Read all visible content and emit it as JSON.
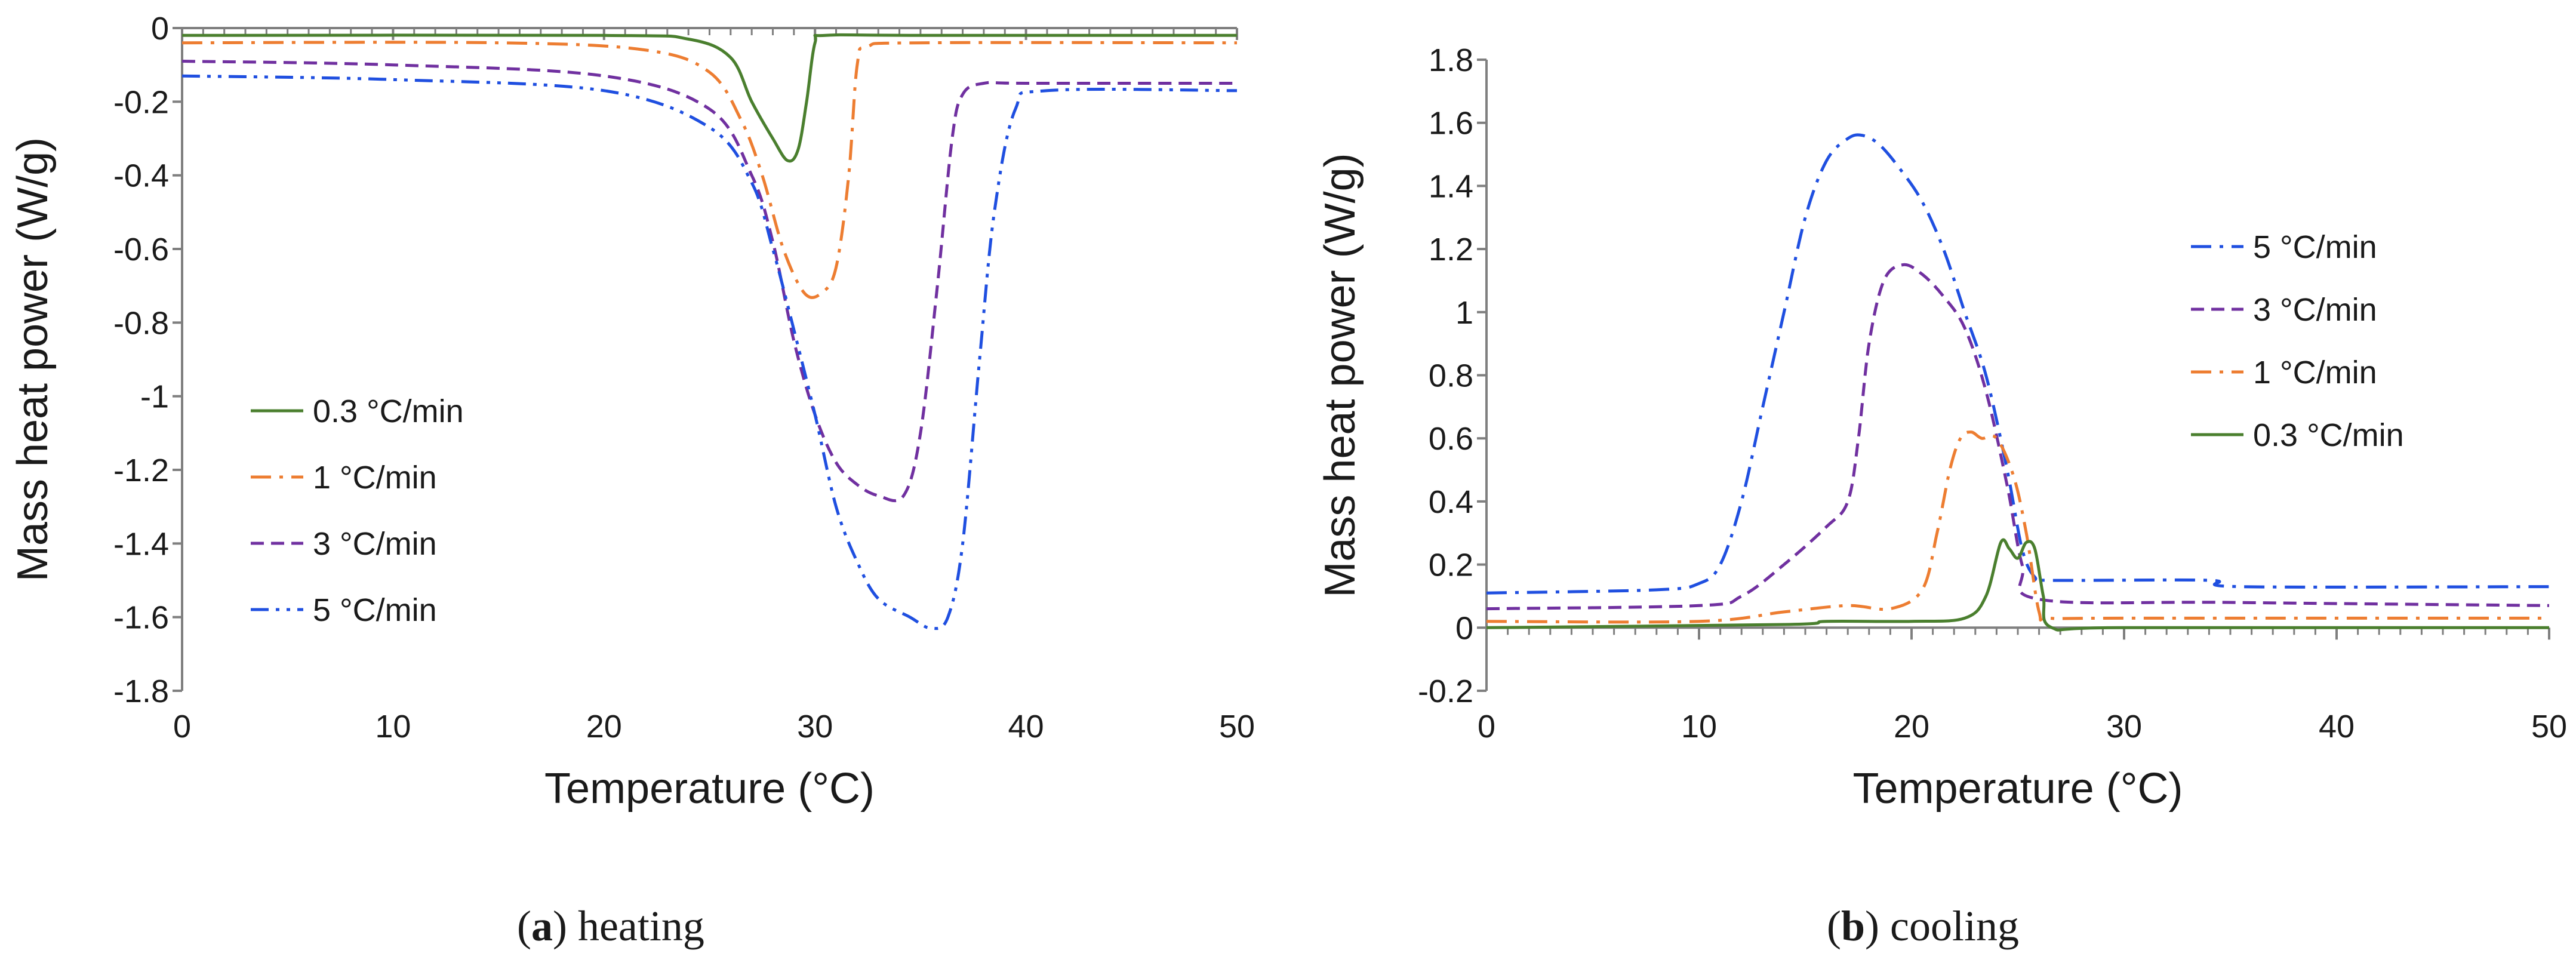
{
  "chart_data": [
    {
      "id": "a",
      "type": "line",
      "caption_letter": "a",
      "caption_text": "heating",
      "xlabel": "Temperature (°C)",
      "ylabel": "Mass heat power (W/g)",
      "xlim": [
        0,
        50
      ],
      "ylim": [
        -1.8,
        0
      ],
      "xticks": [
        0,
        10,
        20,
        30,
        40,
        50
      ],
      "xtick_labels": [
        "0",
        "10",
        "20",
        "30",
        "40",
        "50"
      ],
      "yticks": [
        0,
        -0.2,
        -0.4,
        -0.6,
        -0.8,
        -1,
        -1.2,
        -1.4,
        -1.6,
        -1.8
      ],
      "ytick_labels": [
        "0",
        "-0.2",
        "-0.4",
        "-0.6",
        "-0.8",
        "-1",
        "-1.2",
        "-1.4",
        "-1.6",
        "-1.8"
      ],
      "grid": false,
      "legend_position": "center-left",
      "series": [
        {
          "name": "0.3 °C/min",
          "color": "#4a7f2e",
          "dash": "solid",
          "x": [
            0,
            20,
            24,
            26,
            27,
            28,
            28.7,
            29.2,
            29.6,
            30,
            30.5,
            35,
            50
          ],
          "y": [
            -0.02,
            -0.02,
            -0.03,
            -0.08,
            -0.2,
            -0.3,
            -0.36,
            -0.33,
            -0.2,
            -0.04,
            -0.02,
            -0.02,
            -0.02
          ]
        },
        {
          "name": "1 °C/min",
          "color": "#ed7d31",
          "dash": "dashdot",
          "x": [
            0,
            15,
            22,
            25,
            26.5,
            27.5,
            28.5,
            29.5,
            30.3,
            31,
            31.6,
            32,
            32.5,
            35,
            50
          ],
          "y": [
            -0.04,
            -0.04,
            -0.06,
            -0.12,
            -0.25,
            -0.4,
            -0.6,
            -0.72,
            -0.72,
            -0.65,
            -0.4,
            -0.1,
            -0.05,
            -0.04,
            -0.04
          ]
        },
        {
          "name": "3 °C/min",
          "color": "#7030a0",
          "dash": "dashed",
          "x": [
            0,
            10,
            20,
            25,
            27,
            28,
            29,
            30,
            31,
            32,
            33,
            34.2,
            35,
            35.8,
            36.5,
            37,
            38,
            40,
            50
          ],
          "y": [
            -0.09,
            -0.1,
            -0.13,
            -0.22,
            -0.4,
            -0.58,
            -0.85,
            -1.05,
            -1.18,
            -1.24,
            -1.27,
            -1.27,
            -1.1,
            -0.7,
            -0.3,
            -0.18,
            -0.15,
            -0.15,
            -0.15
          ]
        },
        {
          "name": "5 °C/min",
          "color": "#1f4fe0",
          "dash": "dashdotdot",
          "x": [
            0,
            10,
            20,
            25,
            27,
            28,
            29,
            30,
            31,
            32,
            33,
            34.5,
            35.5,
            36.3,
            37,
            37.8,
            38.5,
            39.5,
            41,
            50
          ],
          "y": [
            -0.13,
            -0.14,
            -0.17,
            -0.27,
            -0.42,
            -0.6,
            -0.82,
            -1.05,
            -1.3,
            -1.45,
            -1.55,
            -1.6,
            -1.63,
            -1.6,
            -1.4,
            -0.9,
            -0.5,
            -0.22,
            -0.17,
            -0.17
          ]
        }
      ]
    },
    {
      "id": "b",
      "type": "line",
      "caption_letter": "b",
      "caption_text": "cooling",
      "xlabel": "Temperature (°C)",
      "ylabel": "Mass heat power (W/g)",
      "xlim": [
        0,
        50
      ],
      "ylim": [
        -0.2,
        1.8
      ],
      "xticks": [
        0,
        10,
        20,
        30,
        40,
        50
      ],
      "xtick_labels": [
        "0",
        "10",
        "20",
        "30",
        "40",
        "50"
      ],
      "yticks": [
        1.8,
        1.6,
        1.4,
        1.2,
        1,
        0.8,
        0.6,
        0.4,
        0.2,
        0,
        -0.2
      ],
      "ytick_labels": [
        "1.8",
        "1.6",
        "1.4",
        "1.2",
        "1",
        "0.8",
        "0.6",
        "0.4",
        "0.2",
        "0",
        "-0.2"
      ],
      "grid": false,
      "legend_position": "right",
      "series": [
        {
          "name": "5 °C/min",
          "color": "#1f4fe0",
          "dash": "dashdot",
          "x": [
            0,
            8,
            10,
            11,
            12,
            13,
            14,
            15,
            16,
            17,
            17.7,
            18.5,
            19.5,
            20.5,
            21.5,
            22.5,
            23.5,
            24.5,
            25.2,
            25.8,
            26.5,
            34,
            35.5,
            50
          ],
          "y": [
            0.11,
            0.12,
            0.14,
            0.2,
            0.4,
            0.7,
            1.0,
            1.3,
            1.48,
            1.55,
            1.56,
            1.53,
            1.45,
            1.35,
            1.2,
            1.0,
            0.8,
            0.5,
            0.25,
            0.16,
            0.15,
            0.15,
            0.13,
            0.13
          ]
        },
        {
          "name": "3 °C/min",
          "color": "#7030a0",
          "dash": "dashed",
          "x": [
            0,
            10,
            12,
            14,
            16,
            17,
            17.5,
            18,
            18.7,
            19.6,
            20.5,
            21.5,
            22.5,
            23.5,
            24.5,
            25.2,
            26,
            35,
            50
          ],
          "y": [
            0.06,
            0.07,
            0.1,
            0.2,
            0.32,
            0.4,
            0.6,
            0.9,
            1.1,
            1.15,
            1.12,
            1.05,
            0.95,
            0.75,
            0.45,
            0.2,
            0.09,
            0.08,
            0.07
          ]
        },
        {
          "name": "1 °C/min",
          "color": "#ed7d31",
          "dash": "dashdot",
          "x": [
            0,
            10,
            14,
            17,
            19,
            20.5,
            21.2,
            21.8,
            22.3,
            22.8,
            23.3,
            24,
            24.8,
            25.4,
            26,
            26.5,
            30,
            50
          ],
          "y": [
            0.02,
            0.02,
            0.05,
            0.07,
            0.06,
            0.12,
            0.3,
            0.5,
            0.6,
            0.62,
            0.6,
            0.6,
            0.48,
            0.3,
            0.05,
            0.03,
            0.03,
            0.03
          ]
        },
        {
          "name": "0.3 °C/min",
          "color": "#4a7f2e",
          "dash": "solid",
          "x": [
            0,
            14,
            16,
            20,
            22.5,
            23.5,
            24.2,
            24.6,
            25,
            25.4,
            25.8,
            26.2,
            26.6,
            30,
            50
          ],
          "y": [
            0.0,
            0.01,
            0.02,
            0.02,
            0.03,
            0.1,
            0.27,
            0.25,
            0.22,
            0.27,
            0.25,
            0.1,
            0.0,
            0.0,
            0.0
          ]
        }
      ]
    }
  ]
}
